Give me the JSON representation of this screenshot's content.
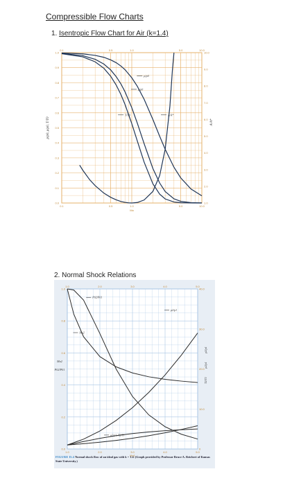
{
  "page": {
    "title": "Compressible Flow Charts",
    "section1": {
      "number": "1.",
      "title": "Isentropic Flow Chart for Air (k=1.4)"
    },
    "section2": {
      "title": "2. Normal Shock Relations"
    }
  },
  "chart_data": [
    {
      "type": "line",
      "title": "",
      "xscale": "log",
      "xlim": [
        0.1,
        10
      ],
      "ylim": [
        0,
        1.0
      ],
      "y2lim": [
        1.0,
        10.0
      ],
      "x_ticks": [
        "0.1",
        "0.5",
        "1.0",
        "5.0",
        "10.0"
      ],
      "y_ticks": [
        "0.0",
        "0.1",
        "0.2",
        "0.3",
        "0.4",
        "0.5",
        "0.6",
        "0.7",
        "0.8",
        "0.9",
        "1.0"
      ],
      "y2_ticks": [
        "1.0",
        "2.0",
        "3.0",
        "4.0",
        "5.0",
        "6.0",
        "7.0",
        "8.0",
        "9.0",
        "10.0"
      ],
      "grid": true,
      "grid_color": "#e6b06a",
      "line_color": "#1f3556",
      "xlabel": "Ma",
      "ylabel": "p/p0, ρ/ρ0, T/T0",
      "y2label": "A/A*",
      "series": [
        {
          "curve": "p_p0",
          "x": [
            0.1,
            0.2,
            0.3,
            0.4,
            0.5,
            0.6,
            0.7,
            0.8,
            1.0,
            1.2,
            1.5,
            2.0,
            2.5,
            3.0,
            4.0,
            5.0,
            7.0,
            10.0
          ],
          "y": [
            0.993,
            0.972,
            0.939,
            0.896,
            0.843,
            0.784,
            0.721,
            0.656,
            0.528,
            0.412,
            0.272,
            0.128,
            0.059,
            0.027,
            0.0066,
            0.0019,
            0.0002,
            2e-05
          ]
        },
        {
          "curve": "rho_rho0",
          "x": [
            0.1,
            0.2,
            0.3,
            0.4,
            0.5,
            0.6,
            0.7,
            0.8,
            1.0,
            1.2,
            1.5,
            2.0,
            2.5,
            3.0,
            4.0,
            5.0,
            7.0,
            10.0
          ],
          "y": [
            0.995,
            0.98,
            0.956,
            0.924,
            0.885,
            0.84,
            0.792,
            0.74,
            0.634,
            0.531,
            0.395,
            0.23,
            0.133,
            0.076,
            0.028,
            0.011,
            0.0025,
            0.0005
          ]
        },
        {
          "curve": "T_T0",
          "x": [
            0.1,
            0.2,
            0.3,
            0.4,
            0.5,
            0.6,
            0.7,
            0.8,
            1.0,
            1.2,
            1.5,
            2.0,
            2.5,
            3.0,
            4.0,
            5.0,
            7.0,
            10.0
          ],
          "y": [
            0.998,
            0.992,
            0.982,
            0.969,
            0.952,
            0.933,
            0.911,
            0.887,
            0.833,
            0.776,
            0.69,
            0.556,
            0.444,
            0.357,
            0.238,
            0.167,
            0.093,
            0.048
          ]
        },
        {
          "curve": "A_Astar",
          "axis": "right",
          "x": [
            0.18,
            0.2,
            0.25,
            0.3,
            0.4,
            0.5,
            0.6,
            0.7,
            0.8,
            0.9,
            1.0,
            1.2,
            1.5,
            2.0,
            2.5,
            3.0,
            3.5,
            3.8,
            4.0
          ],
          "y": [
            3.27,
            2.96,
            2.4,
            2.04,
            1.59,
            1.34,
            1.19,
            1.09,
            1.04,
            1.01,
            1.0,
            1.03,
            1.18,
            1.69,
            2.64,
            4.23,
            6.79,
            8.95,
            10.0
          ]
        }
      ],
      "annotations": [
        {
          "text": "A/A*",
          "x": 3.2,
          "y": 0.6
        },
        {
          "text": "p/p0",
          "x": 1.45,
          "y": 0.86
        },
        {
          "text": "ρ/ρ0",
          "x": 1.2,
          "y": 0.77
        },
        {
          "text": "T/T0",
          "x": 0.78,
          "y": 0.6
        }
      ]
    },
    {
      "type": "line",
      "title": "",
      "xlim": [
        1.0,
        5.0
      ],
      "ylim": [
        0,
        1.0
      ],
      "y2lim": [
        0,
        40
      ],
      "x_ticks": [
        "1.0",
        "2.0",
        "3.0",
        "4.0",
        "5.0"
      ],
      "y_ticks": [
        "0.0",
        "0.2",
        "0.4",
        "0.6",
        "0.8",
        "1.0"
      ],
      "y2_ticks": [
        "0",
        "10.0",
        "20.0",
        "30.0",
        "40.0"
      ],
      "grid": true,
      "grid_color": "#a8c6e4",
      "line_color": "#2b2b2b",
      "xlabel": "Ma1",
      "ylabel_terms": [
        "Ma2",
        "P02/P01"
      ],
      "y2label_terms": [
        "p2/p1",
        "ρ2/ρ1",
        "T2/T1"
      ],
      "series": [
        {
          "curve": "Ma2",
          "x": [
            1.0,
            1.2,
            1.5,
            2.0,
            2.5,
            3.0,
            3.5,
            4.0,
            4.5,
            5.0
          ],
          "y": [
            1.0,
            0.842,
            0.701,
            0.577,
            0.513,
            0.475,
            0.451,
            0.435,
            0.424,
            0.415
          ]
        },
        {
          "curve": "P02_P01",
          "x": [
            1.0,
            1.2,
            1.5,
            2.0,
            2.5,
            3.0,
            3.5,
            4.0,
            4.5,
            5.0
          ],
          "y": [
            1.0,
            0.993,
            0.93,
            0.721,
            0.499,
            0.328,
            0.213,
            0.139,
            0.092,
            0.062
          ]
        },
        {
          "curve": "p2_p1",
          "axis": "right",
          "x": [
            1.0,
            1.5,
            2.0,
            2.5,
            3.0,
            3.5,
            4.0,
            4.5,
            5.0
          ],
          "y": [
            1.0,
            2.46,
            4.5,
            7.13,
            10.33,
            14.13,
            18.5,
            23.46,
            29.0
          ]
        },
        {
          "curve": "rho2_rho1",
          "axis": "right",
          "x": [
            1.0,
            1.5,
            2.0,
            2.5,
            3.0,
            3.5,
            4.0,
            4.5,
            5.0
          ],
          "y": [
            1.0,
            1.86,
            2.67,
            3.33,
            3.86,
            4.26,
            4.57,
            4.81,
            5.0
          ]
        },
        {
          "curve": "T2_T1",
          "axis": "right",
          "x": [
            1.0,
            1.5,
            2.0,
            2.5,
            3.0,
            3.5,
            4.0,
            4.5,
            5.0
          ],
          "y": [
            1.0,
            1.32,
            1.69,
            2.14,
            2.68,
            3.32,
            4.05,
            4.88,
            5.8
          ]
        }
      ],
      "annotations": [
        {
          "text": "P02/P01",
          "x": 1.75,
          "y": 0.96
        },
        {
          "text": "Ma2",
          "x": 1.35,
          "y": 0.74
        },
        {
          "text": "p2/p1",
          "x": 4.15,
          "y": 0.88
        },
        {
          "text": "ρ2/ρ1, T2/T1",
          "x": 2.3,
          "y": 0.1
        }
      ]
    }
  ],
  "figure_caption": {
    "label": "FIGURE D.4",
    "text": "Normal shock flow of an ideal gas with k = 1.4. (Graph provided by Professor Bruce A. Reichert of Kansas State University.)"
  }
}
